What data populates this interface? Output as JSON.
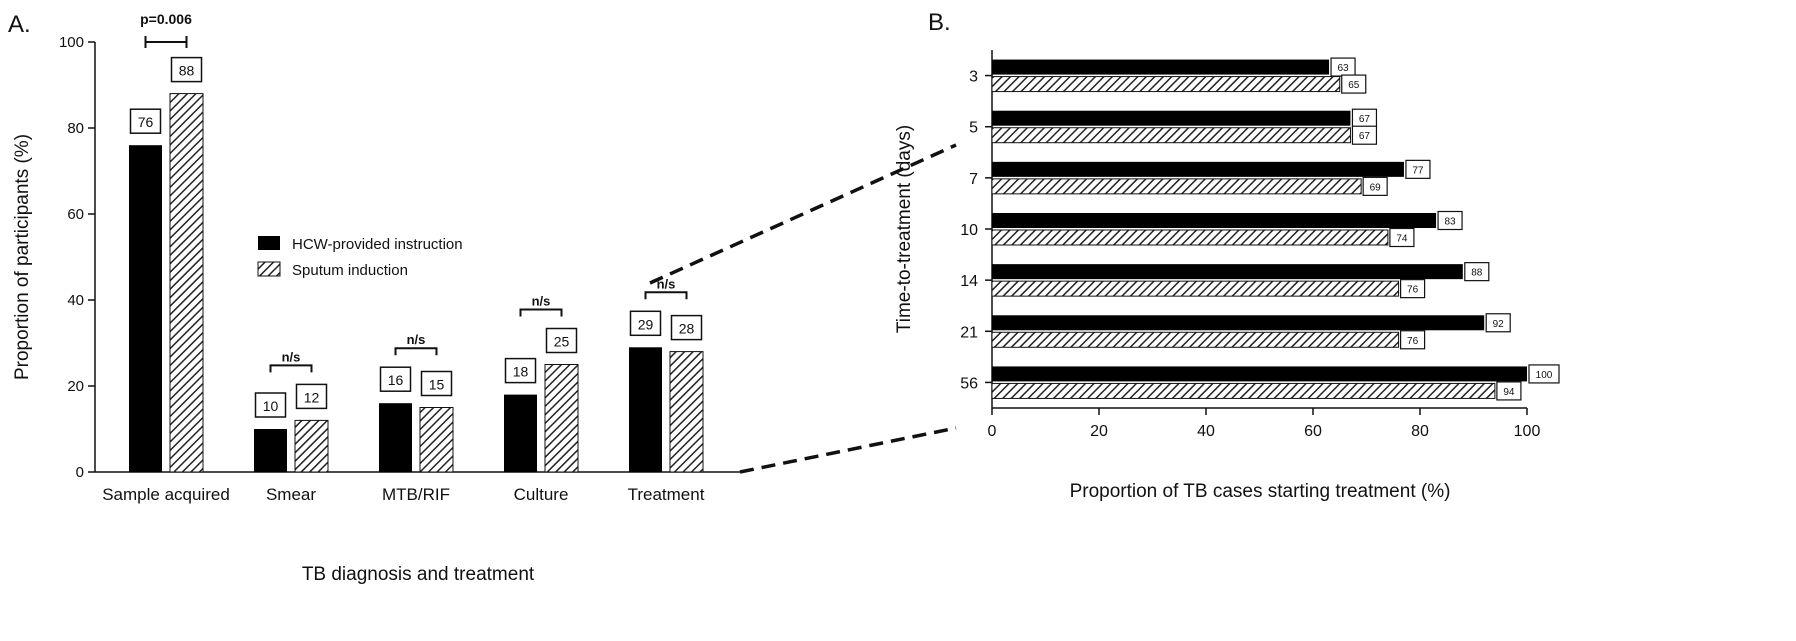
{
  "panel_labels": {
    "a": "A.",
    "b": "B."
  },
  "colors": {
    "solid": "#000000",
    "hatch": "#222222",
    "background": "#ffffff"
  },
  "chart_data": [
    {
      "type": "bar",
      "panel": "A.",
      "title": "",
      "xlabel": "TB diagnosis and treatment",
      "ylabel": "Proportion of participants (%)",
      "ylim": [
        0,
        100
      ],
      "yticks": [
        0,
        20,
        40,
        60,
        80,
        100
      ],
      "categories": [
        "Sample acquired",
        "Smear",
        "MTB/RIF",
        "Culture",
        "Treatment"
      ],
      "series": [
        {
          "name": "HCW-provided instruction",
          "pattern": "solid",
          "values": [
            76,
            10,
            16,
            18,
            29
          ]
        },
        {
          "name": "Sputum induction",
          "pattern": "hatched",
          "values": [
            88,
            12,
            15,
            25,
            28
          ]
        }
      ],
      "annotations": [
        "p=0.006",
        "n/s",
        "n/s",
        "n/s",
        "n/s"
      ],
      "legend_position": "center-right"
    },
    {
      "type": "bar",
      "orientation": "horizontal",
      "panel": "B.",
      "title": "",
      "xlabel": "Proportion of TB cases starting treatment (%)",
      "ylabel": "Time-to-treatment (days)",
      "xlim": [
        0,
        100
      ],
      "xticks": [
        0,
        20,
        40,
        60,
        80,
        100
      ],
      "categories": [
        "3",
        "5",
        "7",
        "10",
        "14",
        "21",
        "56"
      ],
      "series": [
        {
          "name": "HCW-provided instruction",
          "pattern": "solid",
          "values": [
            63,
            67,
            77,
            83,
            88,
            92,
            100
          ]
        },
        {
          "name": "Sputum induction",
          "pattern": "hatched",
          "values": [
            65,
            67,
            69,
            74,
            76,
            76,
            94
          ]
        }
      ]
    }
  ]
}
